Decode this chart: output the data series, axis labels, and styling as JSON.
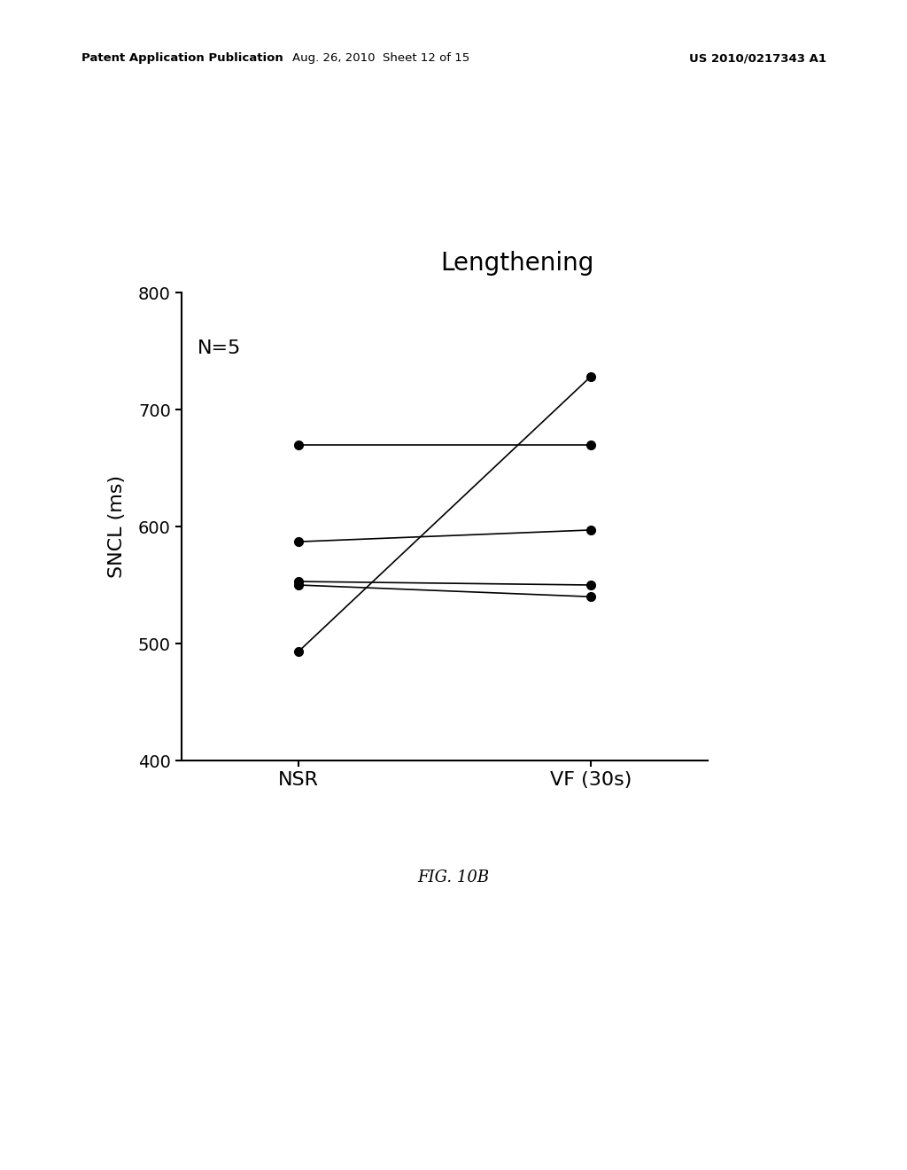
{
  "title": "Lengthening",
  "annotation": "N=5",
  "xlabel_left": "NSR",
  "xlabel_right": "VF (30s)",
  "ylabel": "SNCL (ms)",
  "ylim": [
    400,
    800
  ],
  "yticks": [
    400,
    500,
    600,
    700,
    800
  ],
  "lines": [
    {
      "nsr": 493,
      "vf": 728
    },
    {
      "nsr": 550,
      "vf": 540
    },
    {
      "nsr": 553,
      "vf": 550
    },
    {
      "nsr": 587,
      "vf": 597
    },
    {
      "nsr": 670,
      "vf": 670
    }
  ],
  "background_color": "#ffffff",
  "line_color": "#000000",
  "marker_color": "#000000",
  "marker_size": 7,
  "line_width": 1.2,
  "title_fontsize": 20,
  "axis_label_fontsize": 16,
  "tick_fontsize": 14,
  "annotation_fontsize": 16,
  "header_left": "Patent Application Publication",
  "header_mid": "Aug. 26, 2010  Sheet 12 of 15",
  "header_right": "US 2010/0217343 A1",
  "figure_label": "FIG. 10B",
  "x_positions": [
    0,
    1
  ]
}
